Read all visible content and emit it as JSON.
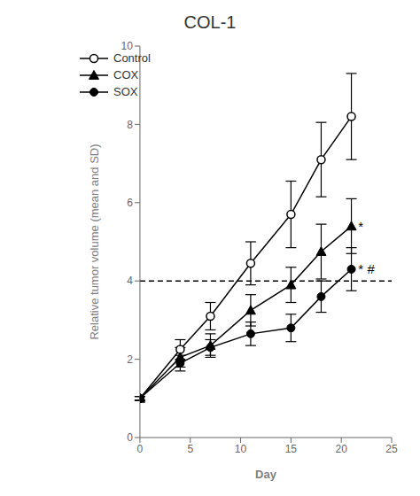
{
  "chart_data": {
    "type": "line",
    "title": "COL-1",
    "x_label": "Day",
    "y_label": "Relative tumor volume (mean and SD)",
    "xlim": [
      0,
      25
    ],
    "ylim": [
      0,
      10
    ],
    "xticks": [
      0,
      5,
      10,
      15,
      20,
      25
    ],
    "yticks": [
      0,
      2,
      4,
      6,
      8,
      10
    ],
    "grid": false,
    "legend": "upper left",
    "x": [
      0,
      4,
      7,
      11,
      15,
      18,
      21
    ],
    "series": [
      {
        "name": "Control",
        "color": "#000000",
        "marker": "open_circle",
        "values": [
          1.0,
          2.25,
          3.1,
          4.45,
          5.7,
          7.1,
          8.2
        ],
        "errors": [
          0.05,
          0.25,
          0.35,
          0.55,
          0.85,
          0.95,
          1.1
        ]
      },
      {
        "name": "COX",
        "color": "#000000",
        "marker": "triangle",
        "values": [
          1.0,
          2.05,
          2.35,
          3.25,
          3.9,
          4.75,
          5.4
        ],
        "errors": [
          0.05,
          0.25,
          0.3,
          0.4,
          0.45,
          0.7,
          0.7
        ]
      },
      {
        "name": "SOX",
        "color": "#000000",
        "marker": "circle",
        "values": [
          1.0,
          1.9,
          2.3,
          2.65,
          2.8,
          3.6,
          4.3
        ],
        "errors": [
          0.05,
          0.2,
          0.2,
          0.3,
          0.35,
          0.4,
          0.55
        ]
      }
    ],
    "hlines": [
      {
        "y": 4.0,
        "line_style": "dashed",
        "color": "#000000"
      }
    ],
    "annotations": [
      {
        "x": 21.6,
        "y": 5.4,
        "text": "*"
      },
      {
        "x": 21.6,
        "y": 4.3,
        "text": "*"
      },
      {
        "x": 22.5,
        "y": 4.3,
        "text": "#"
      }
    ]
  }
}
